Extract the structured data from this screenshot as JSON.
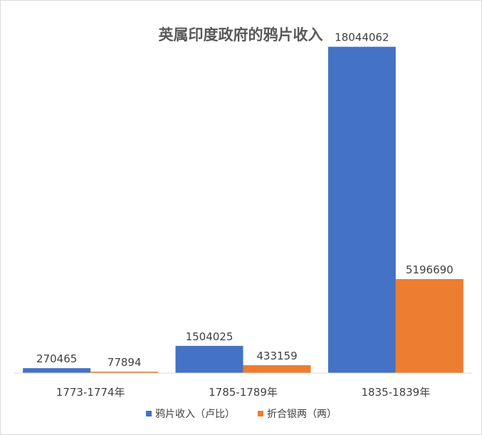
{
  "chart_data": {
    "type": "bar",
    "title": "英属印度政府的鸦片收入",
    "categories": [
      "1773-1774年",
      "1785-1789年",
      "1835-1839年"
    ],
    "series": [
      {
        "name": "鸦片收入（卢比）",
        "values": [
          270465,
          1504025,
          18044062
        ],
        "labels": [
          "270465",
          "1504025",
          "18044062"
        ],
        "color": "#4472C4"
      },
      {
        "name": "折合银两（两）",
        "values": [
          77894,
          433159,
          5196690
        ],
        "labels": [
          "77894",
          "433159",
          "5196690"
        ],
        "color": "#ED7D31"
      }
    ],
    "ylim": [
      0,
      20000000
    ],
    "grid": false,
    "legend": "bottom",
    "colors": {
      "title": "#595959",
      "text": "#404040",
      "axis": "#d9d9d9"
    }
  }
}
